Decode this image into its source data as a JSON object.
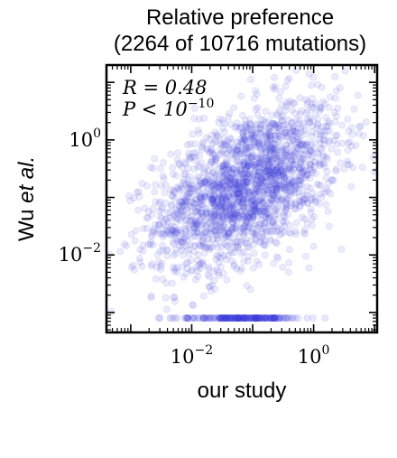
{
  "chart_data": {
    "type": "scatter",
    "title_line1": "Relative preference",
    "title_line2": "(2264 of 10716 mutations)",
    "xlabel": "our study",
    "ylabel_prefix": "Wu ",
    "ylabel_italic": "et al.",
    "x_scale": "log",
    "y_scale": "log",
    "xlim": [
      0.0004,
      11
    ],
    "ylim": [
      0.00045,
      20
    ],
    "x_ticks": [
      {
        "value": 0.01,
        "base": "10",
        "exp": "−2"
      },
      {
        "value": 1,
        "base": "10",
        "exp": "0"
      }
    ],
    "y_ticks": [
      {
        "value": 0.01,
        "base": "10",
        "exp": "−2"
      },
      {
        "value": 1,
        "base": "10",
        "exp": "0"
      }
    ],
    "annotation_r": "R = 0.48",
    "annotation_p_base": "P < 10",
    "annotation_p_exp": "−10",
    "point_color": "#3b3bdb",
    "point_count": 2264,
    "floor_y_value": 0.0008,
    "series": [
      {
        "cloud": {
          "center_log_x": -1.1,
          "center_log_y": -0.8,
          "sd_log_x": 0.75,
          "sd_log_y": 0.72,
          "correlation": 0.48,
          "n": 2060
        },
        "floor": {
          "y": 0.0008,
          "center_log_x": -1.2,
          "sd_log_x": 0.5,
          "n": 204
        }
      }
    ],
    "grid": false,
    "legend": "none"
  }
}
